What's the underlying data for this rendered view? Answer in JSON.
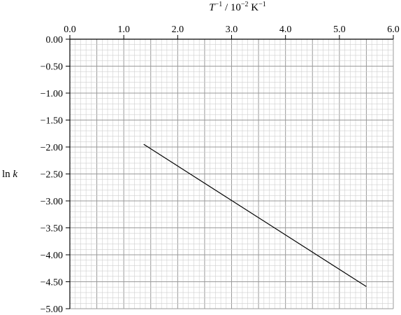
{
  "chart_data": {
    "type": "line",
    "title": "",
    "xlabel": {
      "base": "T",
      "sup1": "−1",
      "mid": " / 10",
      "sup2": "−2",
      "unit": " K",
      "sup3": "−1"
    },
    "ylabel": {
      "prefix": "ln ",
      "var": "k"
    },
    "xlim": [
      0,
      6
    ],
    "ylim": [
      -5,
      0
    ],
    "x_axis_position": "top",
    "x_ticks": [
      0,
      1,
      2,
      3,
      4,
      5,
      6
    ],
    "x_tick_labels": [
      "0.0",
      "1.0",
      "2.0",
      "3.0",
      "4.0",
      "5.0",
      "6.0"
    ],
    "y_ticks": [
      0,
      -0.5,
      -1,
      -1.5,
      -2,
      -2.5,
      -3,
      -3.5,
      -4,
      -4.5,
      -5
    ],
    "y_tick_labels": [
      "0.00",
      "−0.50",
      "−1.00",
      "−1.50",
      "−2.00",
      "−2.50",
      "−3.00",
      "−3.50",
      "−4.00",
      "−4.50",
      "−5.00"
    ],
    "grid": {
      "minor_x_step": 0.1,
      "major_x_step": 0.5,
      "minor_y_step": 0.1,
      "major_y_step": 0.5
    },
    "series": [
      {
        "x": [
          1.37,
          5.5
        ],
        "y": [
          -1.95,
          -4.59
        ],
        "color": "#000000"
      }
    ]
  }
}
